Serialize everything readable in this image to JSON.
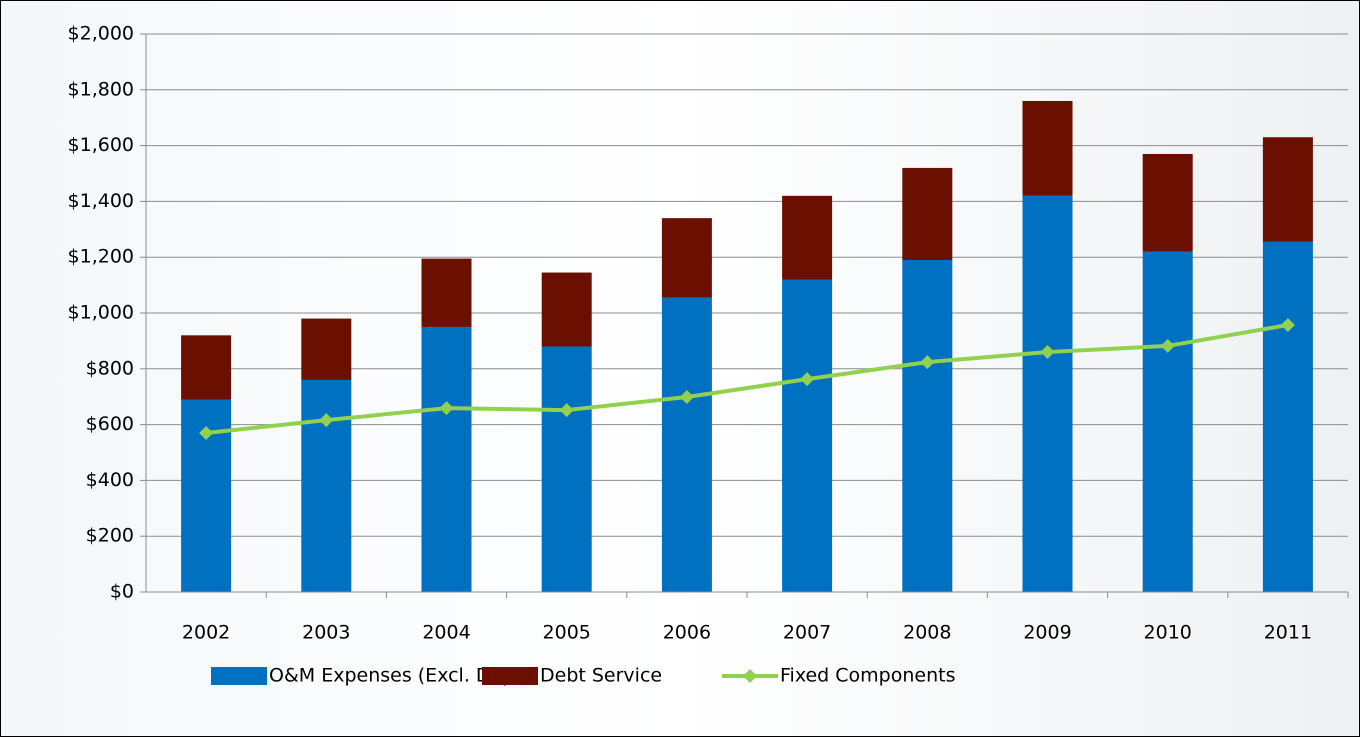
{
  "chart_data": {
    "type": "bar",
    "stacked": true,
    "categories": [
      "2002",
      "2003",
      "2004",
      "2005",
      "2006",
      "2007",
      "2008",
      "2009",
      "2010",
      "2011"
    ],
    "series": [
      {
        "name": "O&M Expenses (Excl. Depr.)",
        "color": "#0070c0",
        "values": [
          690,
          760,
          950,
          880,
          1055,
          1120,
          1190,
          1420,
          1220,
          1255
        ]
      },
      {
        "name": "Debt Service",
        "color": "#6b1000",
        "values": [
          230,
          220,
          245,
          265,
          285,
          300,
          330,
          340,
          350,
          375
        ]
      },
      {
        "name": "Fixed Components",
        "color": "#92d050",
        "type": "line",
        "values": [
          570,
          616,
          659,
          652,
          699,
          763,
          824,
          860,
          882,
          957
        ]
      }
    ],
    "ylim": [
      0,
      2000
    ],
    "yticks": [
      {
        "value": 0,
        "label": "$0"
      },
      {
        "value": 200,
        "label": "$200"
      },
      {
        "value": 400,
        "label": "$400"
      },
      {
        "value": 600,
        "label": "$600"
      },
      {
        "value": 800,
        "label": "$800"
      },
      {
        "value": 1000,
        "label": "$1,000"
      },
      {
        "value": 1200,
        "label": "$1,200"
      },
      {
        "value": 1400,
        "label": "$1,400"
      },
      {
        "value": 1600,
        "label": "$1,600"
      },
      {
        "value": 1800,
        "label": "$1,800"
      },
      {
        "value": 2000,
        "label": "$2,000"
      }
    ],
    "grid": true,
    "legend": "bottom"
  }
}
